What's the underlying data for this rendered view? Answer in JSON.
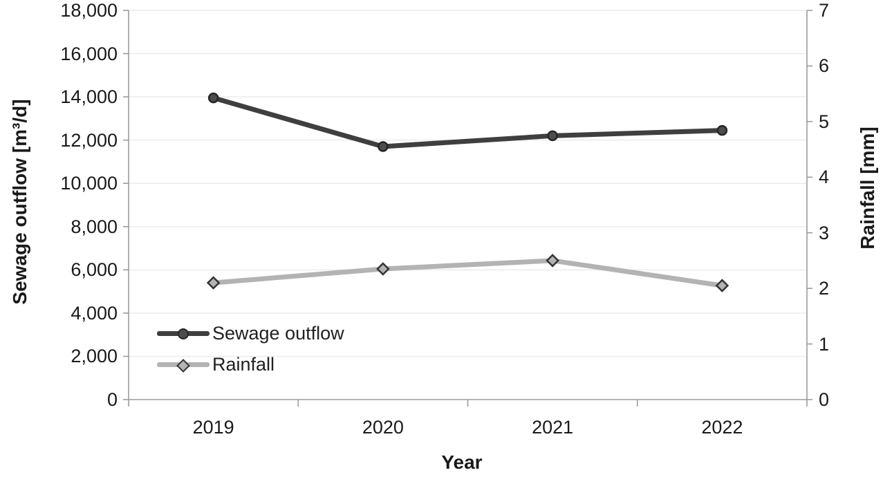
{
  "chart_data": {
    "type": "line",
    "title": "",
    "xlabel": "Year",
    "ylabel_left": "Sewage outflow [m³/d]",
    "ylabel_right": "Rainfall [mm]",
    "categories": [
      "2019",
      "2020",
      "2021",
      "2022"
    ],
    "series": [
      {
        "name": "Sewage outflow",
        "axis": "left",
        "values": [
          13950,
          11700,
          12200,
          12450
        ],
        "color": "#3f3f3f",
        "marker": "circle",
        "marker_fill": "#4d4d4d",
        "marker_stroke": "#262626"
      },
      {
        "name": "Rainfall",
        "axis": "right",
        "values": [
          2.1,
          2.35,
          2.5,
          2.05
        ],
        "color": "#b3b3b3",
        "marker": "diamond",
        "marker_fill": "#b3b3b3",
        "marker_stroke": "#333333"
      }
    ],
    "left_axis": {
      "min": 0,
      "max": 18000,
      "step": 2000,
      "tick_labels": [
        "0",
        "2,000",
        "4,000",
        "6,000",
        "8,000",
        "10,000",
        "12,000",
        "14,000",
        "16,000",
        "18,000"
      ]
    },
    "right_axis": {
      "min": 0,
      "max": 7,
      "step": 1,
      "tick_labels": [
        "0",
        "1",
        "2",
        "3",
        "4",
        "5",
        "6",
        "7"
      ]
    },
    "grid": true,
    "legend_position": "inside-bottom-left",
    "gridline_color": "#ebebeb",
    "axis_color": "#9b9b9b",
    "background_color": "#ffffff"
  }
}
